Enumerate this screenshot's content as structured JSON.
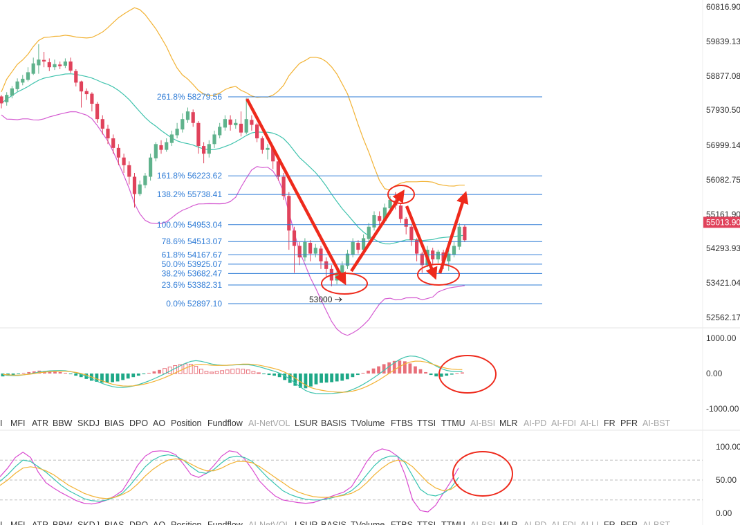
{
  "chart_data": [
    {
      "type": "candlestick",
      "price_axis_ticks": [
        "60816.90",
        "59839.13",
        "58877.08",
        "57930.50",
        "56999.14",
        "56082.75",
        "55161.90",
        "54293.93",
        "53421.04",
        "52562.17"
      ],
      "current_price": "55013.90",
      "fib_levels": [
        {
          "pct": "261.8%",
          "price": "58279.56"
        },
        {
          "pct": "161.8%",
          "price": "56223.62"
        },
        {
          "pct": "138.2%",
          "price": "55738.41"
        },
        {
          "pct": "100.0%",
          "price": "54953.04"
        },
        {
          "pct": "78.6%",
          "price": "54513.07"
        },
        {
          "pct": "61.8%",
          "price": "54167.67"
        },
        {
          "pct": "50.0%",
          "price": "53925.07"
        },
        {
          "pct": "38.2%",
          "price": "53682.47"
        },
        {
          "pct": "23.6%",
          "price": "53382.31"
        },
        {
          "pct": "0.0%",
          "price": "52897.10"
        }
      ],
      "annotation": "53000",
      "candles": [
        [
          58290,
          58110,
          58330,
          57980
        ],
        [
          58140,
          58330,
          58400,
          58050
        ],
        [
          58310,
          58500,
          58560,
          58240
        ],
        [
          58480,
          58680,
          58760,
          58420
        ],
        [
          58650,
          58750,
          58850,
          58580
        ],
        [
          58720,
          58920,
          59050,
          58680
        ],
        [
          58880,
          59150,
          59300,
          58850
        ],
        [
          59100,
          59250,
          59650,
          58880
        ],
        [
          59240,
          59200,
          59450,
          59050
        ],
        [
          59180,
          59050,
          59280,
          58950
        ],
        [
          59050,
          59130,
          59250,
          58980
        ],
        [
          59120,
          59080,
          59200,
          59000
        ],
        [
          59090,
          59200,
          59280,
          59030
        ],
        [
          59200,
          58960,
          59300,
          58900
        ],
        [
          58950,
          58650,
          59000,
          58550
        ],
        [
          58680,
          58420,
          58700,
          58000
        ],
        [
          58430,
          58350,
          58500,
          58200
        ],
        [
          58360,
          58100,
          58400,
          57900
        ],
        [
          58100,
          57700,
          58150,
          57600
        ],
        [
          57700,
          57450,
          57800,
          57300
        ],
        [
          57450,
          57200,
          57550,
          57050
        ],
        [
          57200,
          56950,
          57300,
          56800
        ],
        [
          56950,
          56700,
          57050,
          56500
        ],
        [
          56700,
          56500,
          56800,
          56300
        ],
        [
          56500,
          56200,
          56600,
          56000
        ],
        [
          56200,
          55750,
          56300,
          55400
        ],
        [
          55750,
          56000,
          56100,
          55700
        ],
        [
          55980,
          56230,
          56300,
          55900
        ],
        [
          56200,
          56700,
          56800,
          56100
        ],
        [
          56680,
          57050,
          57100,
          56600
        ],
        [
          57020,
          56900,
          57150,
          56800
        ],
        [
          56900,
          57100,
          57200,
          56850
        ],
        [
          57080,
          57300,
          57400,
          57000
        ],
        [
          57280,
          57450,
          57600,
          57200
        ],
        [
          57430,
          57700,
          57850,
          57350
        ],
        [
          57680,
          57900,
          58000,
          57600
        ],
        [
          57880,
          57600,
          57950,
          57500
        ],
        [
          57600,
          57000,
          57650,
          56800
        ],
        [
          57000,
          56800,
          57100,
          56550
        ],
        [
          56800,
          57050,
          57150,
          56700
        ],
        [
          57050,
          57300,
          57400,
          56950
        ],
        [
          57280,
          57500,
          57600,
          57200
        ],
        [
          57480,
          57700,
          57800,
          57400
        ],
        [
          57690,
          57550,
          57800,
          57400
        ],
        [
          57540,
          57600,
          57700,
          57450
        ],
        [
          57580,
          57350,
          57900,
          57250
        ],
        [
          57350,
          57700,
          58250,
          57300
        ],
        [
          57680,
          57550,
          57800,
          57400
        ],
        [
          57560,
          57200,
          57600,
          57100
        ],
        [
          57200,
          56900,
          57250,
          56800
        ],
        [
          56900,
          56950,
          57050,
          56650
        ],
        [
          56950,
          56600,
          57000,
          56400
        ],
        [
          56600,
          56200,
          56700,
          56100
        ],
        [
          56200,
          55700,
          56300,
          55600
        ],
        [
          55700,
          54800,
          55800,
          54300
        ],
        [
          54800,
          54400,
          54900,
          53700
        ],
        [
          54400,
          54100,
          54500,
          53900
        ],
        [
          54100,
          54500,
          54600,
          54000
        ],
        [
          54480,
          54200,
          54550,
          54000
        ],
        [
          54200,
          54350,
          54450,
          54100
        ],
        [
          54330,
          54000,
          54400,
          53800
        ],
        [
          54000,
          53800,
          54100,
          53600
        ],
        [
          53800,
          53500,
          53900,
          53350
        ],
        [
          53500,
          53700,
          53800,
          53400
        ],
        [
          53700,
          53900,
          54000,
          53600
        ],
        [
          53880,
          54200,
          54300,
          53800
        ],
        [
          54180,
          54500,
          54600,
          54100
        ],
        [
          54480,
          54300,
          54550,
          54200
        ],
        [
          54300,
          54600,
          54700,
          54250
        ],
        [
          54580,
          54900,
          55000,
          54500
        ],
        [
          54880,
          55200,
          55300,
          54800
        ],
        [
          55180,
          55050,
          55300,
          54950
        ],
        [
          55050,
          55400,
          55500,
          55000
        ],
        [
          55380,
          55600,
          55700,
          55300
        ],
        [
          55580,
          55450,
          55800,
          55350
        ],
        [
          55450,
          55100,
          55500,
          55000
        ],
        [
          55100,
          54900,
          55150,
          54700
        ],
        [
          54900,
          54550,
          54950,
          54400
        ],
        [
          54550,
          54200,
          54600,
          54000
        ],
        [
          54200,
          53900,
          54250,
          53700
        ],
        [
          53900,
          54300,
          54400,
          53850
        ],
        [
          54280,
          54050,
          54350,
          53900
        ],
        [
          54050,
          54250,
          54300,
          53950
        ],
        [
          54230,
          54000,
          54300,
          53800
        ],
        [
          54000,
          54200,
          54300,
          53750
        ],
        [
          54180,
          54400,
          54500,
          54100
        ],
        [
          54380,
          54900,
          55000,
          54300
        ],
        [
          54900,
          54550,
          54950,
          54500
        ]
      ],
      "moving_averages": [
        {
          "name": "upper",
          "color": "#f2b233"
        },
        {
          "name": "middle",
          "color": "#3fc3ad"
        },
        {
          "name": "lower",
          "color": "#d45ad1"
        }
      ]
    },
    {
      "type": "histogram",
      "axis_ticks": [
        "1000.00",
        "0.00",
        "-1000.00"
      ],
      "positive_color": "#e8707a",
      "negative_color": "#1ea887",
      "histogram": [
        -80,
        -60,
        -40,
        -20,
        20,
        40,
        60,
        80,
        70,
        60,
        50,
        40,
        20,
        -20,
        -60,
        -100,
        -150,
        -200,
        -230,
        -250,
        -250,
        -240,
        -220,
        -180,
        -140,
        -100,
        -60,
        -20,
        20,
        60,
        100,
        140,
        180,
        220,
        250,
        270,
        260,
        200,
        120,
        60,
        40,
        60,
        80,
        100,
        120,
        130,
        120,
        100,
        60,
        20,
        -20,
        -40,
        -60,
        -100,
        -180,
        -260,
        -340,
        -400,
        -410,
        -360,
        -300,
        -260,
        -250,
        -240,
        -220,
        -200,
        -160,
        -100,
        -40,
        20,
        80,
        140,
        200,
        260,
        310,
        350,
        360,
        340,
        280,
        200,
        120,
        40,
        -40,
        -80,
        -90,
        -60,
        -30,
        10,
        30
      ]
    },
    {
      "type": "line",
      "axis_ticks": [
        "100.00",
        "50.00",
        "0.00"
      ],
      "series": [
        {
          "color": "#d94bd0",
          "values": [
            55,
            68,
            84,
            92,
            84,
            62,
            46,
            38,
            31,
            25,
            19,
            15,
            14,
            16,
            20,
            26,
            34,
            52,
            72,
            86,
            93,
            94,
            93,
            88,
            74,
            58,
            54,
            60,
            72,
            86,
            94,
            92,
            82,
            66,
            48,
            36,
            26,
            20,
            18,
            16,
            15,
            16,
            20,
            24,
            28,
            32,
            40,
            58,
            78,
            92,
            97,
            94,
            86,
            58,
            20,
            4,
            2,
            12,
            30,
            48,
            68
          ]
        },
        {
          "color": "#37c4b0",
          "values": [
            48,
            58,
            70,
            80,
            78,
            70,
            62,
            52,
            42,
            34,
            28,
            22,
            19,
            18,
            20,
            24,
            30,
            42,
            56,
            70,
            80,
            86,
            88,
            86,
            80,
            70,
            62,
            60,
            66,
            76,
            84,
            86,
            84,
            78,
            66,
            54,
            44,
            34,
            28,
            24,
            21,
            20,
            20,
            22,
            25,
            28,
            34,
            44,
            58,
            72,
            82,
            86,
            86,
            76,
            56,
            36,
            28,
            26,
            30,
            38,
            54
          ]
        },
        {
          "color": "#f2b233",
          "values": [
            42,
            50,
            60,
            68,
            70,
            68,
            64,
            58,
            50,
            42,
            36,
            30,
            26,
            23,
            22,
            24,
            28,
            34,
            44,
            56,
            66,
            74,
            80,
            82,
            80,
            74,
            68,
            64,
            64,
            68,
            74,
            78,
            78,
            76,
            70,
            62,
            54,
            46,
            38,
            32,
            28,
            25,
            24,
            24,
            25,
            27,
            30,
            36,
            46,
            58,
            68,
            76,
            80,
            78,
            70,
            58,
            46,
            38,
            34,
            36,
            44
          ]
        }
      ]
    }
  ],
  "indicator_tabs": [
    {
      "label": "I",
      "active": true
    },
    {
      "label": "MFI",
      "active": true
    },
    {
      "label": "ATR",
      "active": true
    },
    {
      "label": "BBW",
      "active": true
    },
    {
      "label": "SKDJ",
      "active": true
    },
    {
      "label": "BIAS",
      "active": true
    },
    {
      "label": "DPO",
      "active": true
    },
    {
      "label": "AO",
      "active": true
    },
    {
      "label": "Position",
      "active": true
    },
    {
      "label": "Fundflow",
      "active": true
    },
    {
      "label": "AI-NetVOL",
      "active": false
    },
    {
      "label": "LSUR",
      "active": true
    },
    {
      "label": "BASIS",
      "active": true
    },
    {
      "label": "TVolume",
      "active": true
    },
    {
      "label": "FTBS",
      "active": true
    },
    {
      "label": "TTSI",
      "active": true
    },
    {
      "label": "TTMU",
      "active": true
    },
    {
      "label": "AI-BSI",
      "active": false
    },
    {
      "label": "MLR",
      "active": true
    },
    {
      "label": "AI-PD",
      "active": false
    },
    {
      "label": "AI-FDI",
      "active": false
    },
    {
      "label": "AI-LI",
      "active": false
    },
    {
      "label": "FR",
      "active": true
    },
    {
      "label": "PFR",
      "active": true
    },
    {
      "label": "AI-BST",
      "active": false
    }
  ],
  "colors": {
    "up": "#5fb28c",
    "down": "#e0425b",
    "fib": "#2e7bd6",
    "annotation": "#ee2a1c",
    "price_tag": "#e0425b"
  }
}
